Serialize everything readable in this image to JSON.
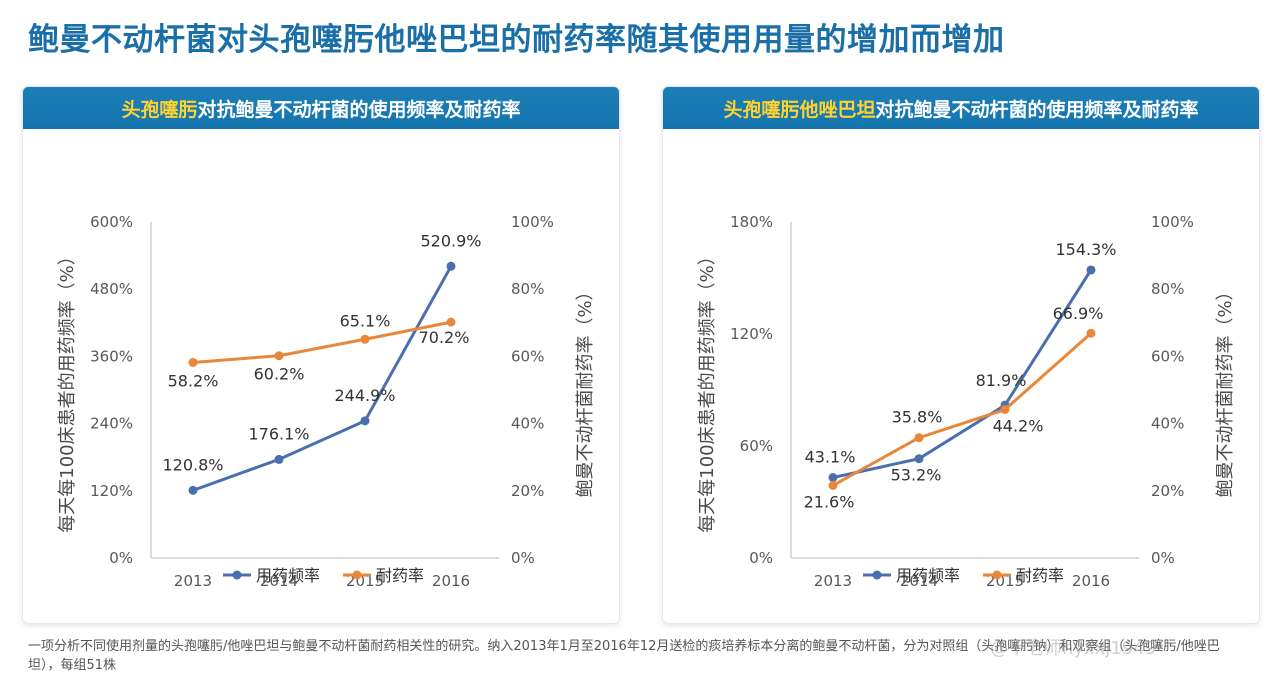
{
  "title": "鲍曼不动杆菌对头孢噻肟他唑巴坦的耐药率随其使用用量的增加而增加",
  "footnote": "一项分析不同使用剂量的头孢噻肟/他唑巴坦与鲍曼不动杆菌耐药相关性的研究。纳入2013年1月至2016年12月送检的痰培养标本分离的鲍曼不动杆菌，分为对照组（头孢噻肟钠）和观察组（头孢噻肟/他唑巴坦），每组51株",
  "watermark": "@平老师hyxxj1949",
  "panels": [
    {
      "header_highlight": "头孢噻肟",
      "header_rest": "对抗鲍曼不动杆菌的使用频率及耐药率"
    },
    {
      "header_highlight": "头孢噻肟他唑巴坦",
      "header_rest": "对抗鲍曼不动杆菌的使用频率及耐药率"
    }
  ],
  "chart_data": [
    {
      "type": "line",
      "categories": [
        "2013",
        "2014",
        "2015",
        "2016"
      ],
      "ylabel_left": "每天每100床患者的用药频率（%）",
      "ylabel_right": "鲍曼不动杆菌耐药率（%）",
      "ylim_left": [
        0,
        600
      ],
      "yticks_left": [
        "0%",
        "120%",
        "240%",
        "360%",
        "480%",
        "600%"
      ],
      "ylim_right": [
        0,
        100
      ],
      "yticks_right": [
        "0%",
        "20%",
        "40%",
        "60%",
        "80%",
        "100%"
      ],
      "grid": false,
      "legend_position": "bottom",
      "series": [
        {
          "name": "用药频率",
          "axis": "left",
          "color": "#4a6fad",
          "values": [
            120.8,
            176.1,
            244.9,
            520.9
          ],
          "labels": [
            "120.8%",
            "176.1%",
            "244.9%",
            "520.9%"
          ]
        },
        {
          "name": "耐药率",
          "axis": "right",
          "color": "#e8873a",
          "values": [
            58.2,
            60.2,
            65.1,
            70.2
          ],
          "labels": [
            "58.2%",
            "60.2%",
            "65.1%",
            "70.2%"
          ]
        }
      ]
    },
    {
      "type": "line",
      "categories": [
        "2013",
        "2014",
        "2015",
        "2016"
      ],
      "ylabel_left": "每天每100床患者的用药频率（%）",
      "ylabel_right": "鲍曼不动杆菌耐药率（%）",
      "ylim_left": [
        0,
        180
      ],
      "yticks_left": [
        "0%",
        "60%",
        "120%",
        "180%"
      ],
      "ylim_right": [
        0,
        100
      ],
      "yticks_right": [
        "0%",
        "20%",
        "40%",
        "60%",
        "80%",
        "100%"
      ],
      "grid": false,
      "legend_position": "bottom",
      "series": [
        {
          "name": "用药频率",
          "axis": "left",
          "color": "#4a6fad",
          "values": [
            43.1,
            53.2,
            81.9,
            154.3
          ],
          "labels": [
            "43.1%",
            "53.2%",
            "81.9%",
            "154.3%"
          ]
        },
        {
          "name": "耐药率",
          "axis": "right",
          "color": "#e8873a",
          "values": [
            21.6,
            35.8,
            44.2,
            66.9
          ],
          "labels": [
            "21.6%",
            "35.8%",
            "44.2%",
            "66.9%"
          ]
        }
      ]
    }
  ]
}
